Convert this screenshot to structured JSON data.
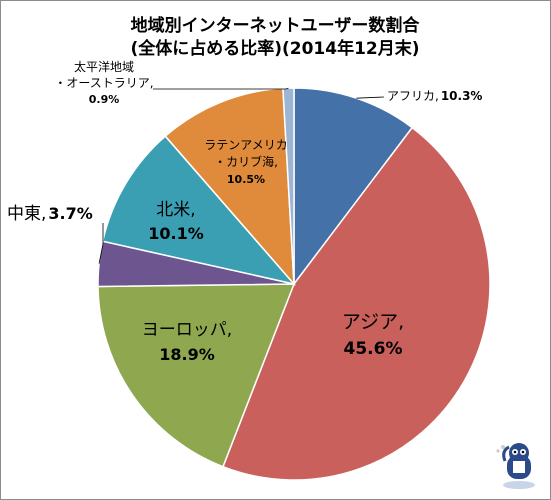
{
  "chart_data": {
    "type": "pie",
    "title": "地域別インターネットユーザー数割合",
    "subtitle": "(全体に占める比率)(2014年12月末)",
    "unit": "%",
    "slices": [
      {
        "label_lines": [
          "アフリカ,"
        ],
        "value_text": "10.3%",
        "value": 10.3,
        "color": "#4472a8"
      },
      {
        "label_lines": [
          "アジア,"
        ],
        "value_text": "45.6%",
        "value": 45.6,
        "color": "#c9605c"
      },
      {
        "label_lines": [
          "ヨーロッパ,"
        ],
        "value_text": "18.9%",
        "value": 18.9,
        "color": "#8fa84f"
      },
      {
        "label_lines": [
          "中東,"
        ],
        "value_text": "3.7%",
        "value": 3.7,
        "color": "#6d5590"
      },
      {
        "label_lines": [
          "北米,"
        ],
        "value_text": "10.1%",
        "value": 10.1,
        "color": "#3a9fb3"
      },
      {
        "label_lines": [
          "ラテンアメリカ",
          "・カリブ海,"
        ],
        "value_text": "10.5%",
        "value": 10.5,
        "color": "#e08a3c"
      },
      {
        "label_lines": [
          "太平洋地域",
          "・オーストラリア,"
        ],
        "value_text": "0.9%",
        "value": 0.9,
        "color": "#9db5d5"
      }
    ],
    "legend": "none"
  }
}
